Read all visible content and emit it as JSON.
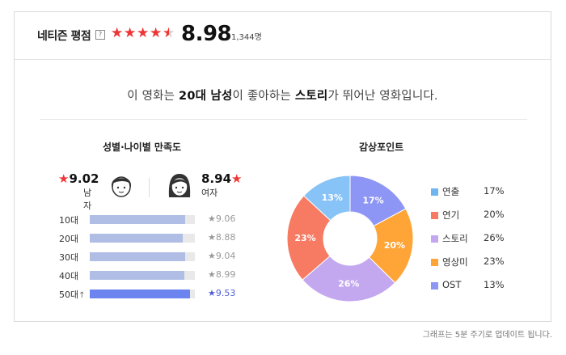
{
  "header": {
    "title": "네티즌 평점",
    "help": "?",
    "rating": 8.98,
    "rating_text": "8.98",
    "count": "1,344명"
  },
  "summary": {
    "prefix": "이 영화는 ",
    "group": "20대 남성",
    "middle": "이 좋아하는 ",
    "point": "스토리",
    "suffix": "가 뛰어난 영화입니다."
  },
  "satisfaction": {
    "title": "성별·나이별 만족도",
    "male": {
      "score": "9.02",
      "label": "남자"
    },
    "female": {
      "score": "8.94",
      "label": "여자"
    },
    "ages": [
      {
        "label": "10대",
        "score": "9.06",
        "value": 9.06,
        "highlight": false
      },
      {
        "label": "20대",
        "score": "8.88",
        "value": 8.88,
        "highlight": false
      },
      {
        "label": "30대",
        "score": "9.04",
        "value": 9.04,
        "highlight": false
      },
      {
        "label": "40대",
        "score": "8.99",
        "value": 8.99,
        "highlight": false
      },
      {
        "label": "50대",
        "score": "9.53",
        "value": 9.53,
        "highlight": true
      }
    ]
  },
  "points": {
    "title": "감상포인트",
    "items": [
      {
        "name": "연출",
        "pct": "17%",
        "value": 17,
        "color": "#8d96f5"
      },
      {
        "name": "연기",
        "pct": "20%",
        "value": 20,
        "color": "#ffa537"
      },
      {
        "name": "스토리",
        "pct": "26%",
        "value": 26,
        "color": "#c3a8f0"
      },
      {
        "name": "영상미",
        "pct": "23%",
        "value": 23,
        "color": "#f67b62"
      },
      {
        "name": "OST",
        "pct": "13%",
        "value": 13,
        "color": "#87c3f6"
      }
    ],
    "legend": [
      {
        "name": "연출",
        "pct": "17%",
        "color": "#6fb5f0"
      },
      {
        "name": "연기",
        "pct": "20%",
        "color": "#f67b62"
      },
      {
        "name": "스토리",
        "pct": "26%",
        "color": "#c3a8f0"
      },
      {
        "name": "영상미",
        "pct": "23%",
        "color": "#ffa537"
      },
      {
        "name": "OST",
        "pct": "13%",
        "color": "#8d96f5"
      }
    ]
  },
  "colors": {
    "star_red": "#f03535",
    "bar_normal": "#b0bee5",
    "bar_highlight": "#6c84f0",
    "highlight_text": "#5160d9"
  },
  "footnote": "그래프는 5분 주기로 업데이트 됩니다."
}
